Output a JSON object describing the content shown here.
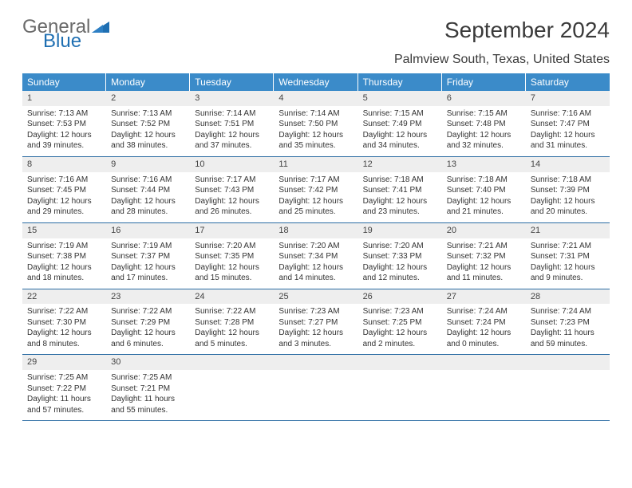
{
  "brand": {
    "part1": "General",
    "part2": "Blue"
  },
  "title": "September 2024",
  "location": "Palmview South, Texas, United States",
  "colors": {
    "header_bg": "#3b8bc9",
    "header_text": "#ffffff",
    "daynum_bg": "#eeeeee",
    "week_border": "#2b6ca3",
    "body_text": "#333333",
    "brand_gray": "#6a6a6a",
    "brand_blue": "#1f6fb2"
  },
  "day_names": [
    "Sunday",
    "Monday",
    "Tuesday",
    "Wednesday",
    "Thursday",
    "Friday",
    "Saturday"
  ],
  "weeks": [
    [
      {
        "n": "1",
        "sr": "7:13 AM",
        "ss": "7:53 PM",
        "dl": "12 hours and 39 minutes."
      },
      {
        "n": "2",
        "sr": "7:13 AM",
        "ss": "7:52 PM",
        "dl": "12 hours and 38 minutes."
      },
      {
        "n": "3",
        "sr": "7:14 AM",
        "ss": "7:51 PM",
        "dl": "12 hours and 37 minutes."
      },
      {
        "n": "4",
        "sr": "7:14 AM",
        "ss": "7:50 PM",
        "dl": "12 hours and 35 minutes."
      },
      {
        "n": "5",
        "sr": "7:15 AM",
        "ss": "7:49 PM",
        "dl": "12 hours and 34 minutes."
      },
      {
        "n": "6",
        "sr": "7:15 AM",
        "ss": "7:48 PM",
        "dl": "12 hours and 32 minutes."
      },
      {
        "n": "7",
        "sr": "7:16 AM",
        "ss": "7:47 PM",
        "dl": "12 hours and 31 minutes."
      }
    ],
    [
      {
        "n": "8",
        "sr": "7:16 AM",
        "ss": "7:45 PM",
        "dl": "12 hours and 29 minutes."
      },
      {
        "n": "9",
        "sr": "7:16 AM",
        "ss": "7:44 PM",
        "dl": "12 hours and 28 minutes."
      },
      {
        "n": "10",
        "sr": "7:17 AM",
        "ss": "7:43 PM",
        "dl": "12 hours and 26 minutes."
      },
      {
        "n": "11",
        "sr": "7:17 AM",
        "ss": "7:42 PM",
        "dl": "12 hours and 25 minutes."
      },
      {
        "n": "12",
        "sr": "7:18 AM",
        "ss": "7:41 PM",
        "dl": "12 hours and 23 minutes."
      },
      {
        "n": "13",
        "sr": "7:18 AM",
        "ss": "7:40 PM",
        "dl": "12 hours and 21 minutes."
      },
      {
        "n": "14",
        "sr": "7:18 AM",
        "ss": "7:39 PM",
        "dl": "12 hours and 20 minutes."
      }
    ],
    [
      {
        "n": "15",
        "sr": "7:19 AM",
        "ss": "7:38 PM",
        "dl": "12 hours and 18 minutes."
      },
      {
        "n": "16",
        "sr": "7:19 AM",
        "ss": "7:37 PM",
        "dl": "12 hours and 17 minutes."
      },
      {
        "n": "17",
        "sr": "7:20 AM",
        "ss": "7:35 PM",
        "dl": "12 hours and 15 minutes."
      },
      {
        "n": "18",
        "sr": "7:20 AM",
        "ss": "7:34 PM",
        "dl": "12 hours and 14 minutes."
      },
      {
        "n": "19",
        "sr": "7:20 AM",
        "ss": "7:33 PM",
        "dl": "12 hours and 12 minutes."
      },
      {
        "n": "20",
        "sr": "7:21 AM",
        "ss": "7:32 PM",
        "dl": "12 hours and 11 minutes."
      },
      {
        "n": "21",
        "sr": "7:21 AM",
        "ss": "7:31 PM",
        "dl": "12 hours and 9 minutes."
      }
    ],
    [
      {
        "n": "22",
        "sr": "7:22 AM",
        "ss": "7:30 PM",
        "dl": "12 hours and 8 minutes."
      },
      {
        "n": "23",
        "sr": "7:22 AM",
        "ss": "7:29 PM",
        "dl": "12 hours and 6 minutes."
      },
      {
        "n": "24",
        "sr": "7:22 AM",
        "ss": "7:28 PM",
        "dl": "12 hours and 5 minutes."
      },
      {
        "n": "25",
        "sr": "7:23 AM",
        "ss": "7:27 PM",
        "dl": "12 hours and 3 minutes."
      },
      {
        "n": "26",
        "sr": "7:23 AM",
        "ss": "7:25 PM",
        "dl": "12 hours and 2 minutes."
      },
      {
        "n": "27",
        "sr": "7:24 AM",
        "ss": "7:24 PM",
        "dl": "12 hours and 0 minutes."
      },
      {
        "n": "28",
        "sr": "7:24 AM",
        "ss": "7:23 PM",
        "dl": "11 hours and 59 minutes."
      }
    ],
    [
      {
        "n": "29",
        "sr": "7:25 AM",
        "ss": "7:22 PM",
        "dl": "11 hours and 57 minutes."
      },
      {
        "n": "30",
        "sr": "7:25 AM",
        "ss": "7:21 PM",
        "dl": "11 hours and 55 minutes."
      },
      null,
      null,
      null,
      null,
      null
    ]
  ],
  "labels": {
    "sunrise": "Sunrise:",
    "sunset": "Sunset:",
    "daylight": "Daylight:"
  }
}
